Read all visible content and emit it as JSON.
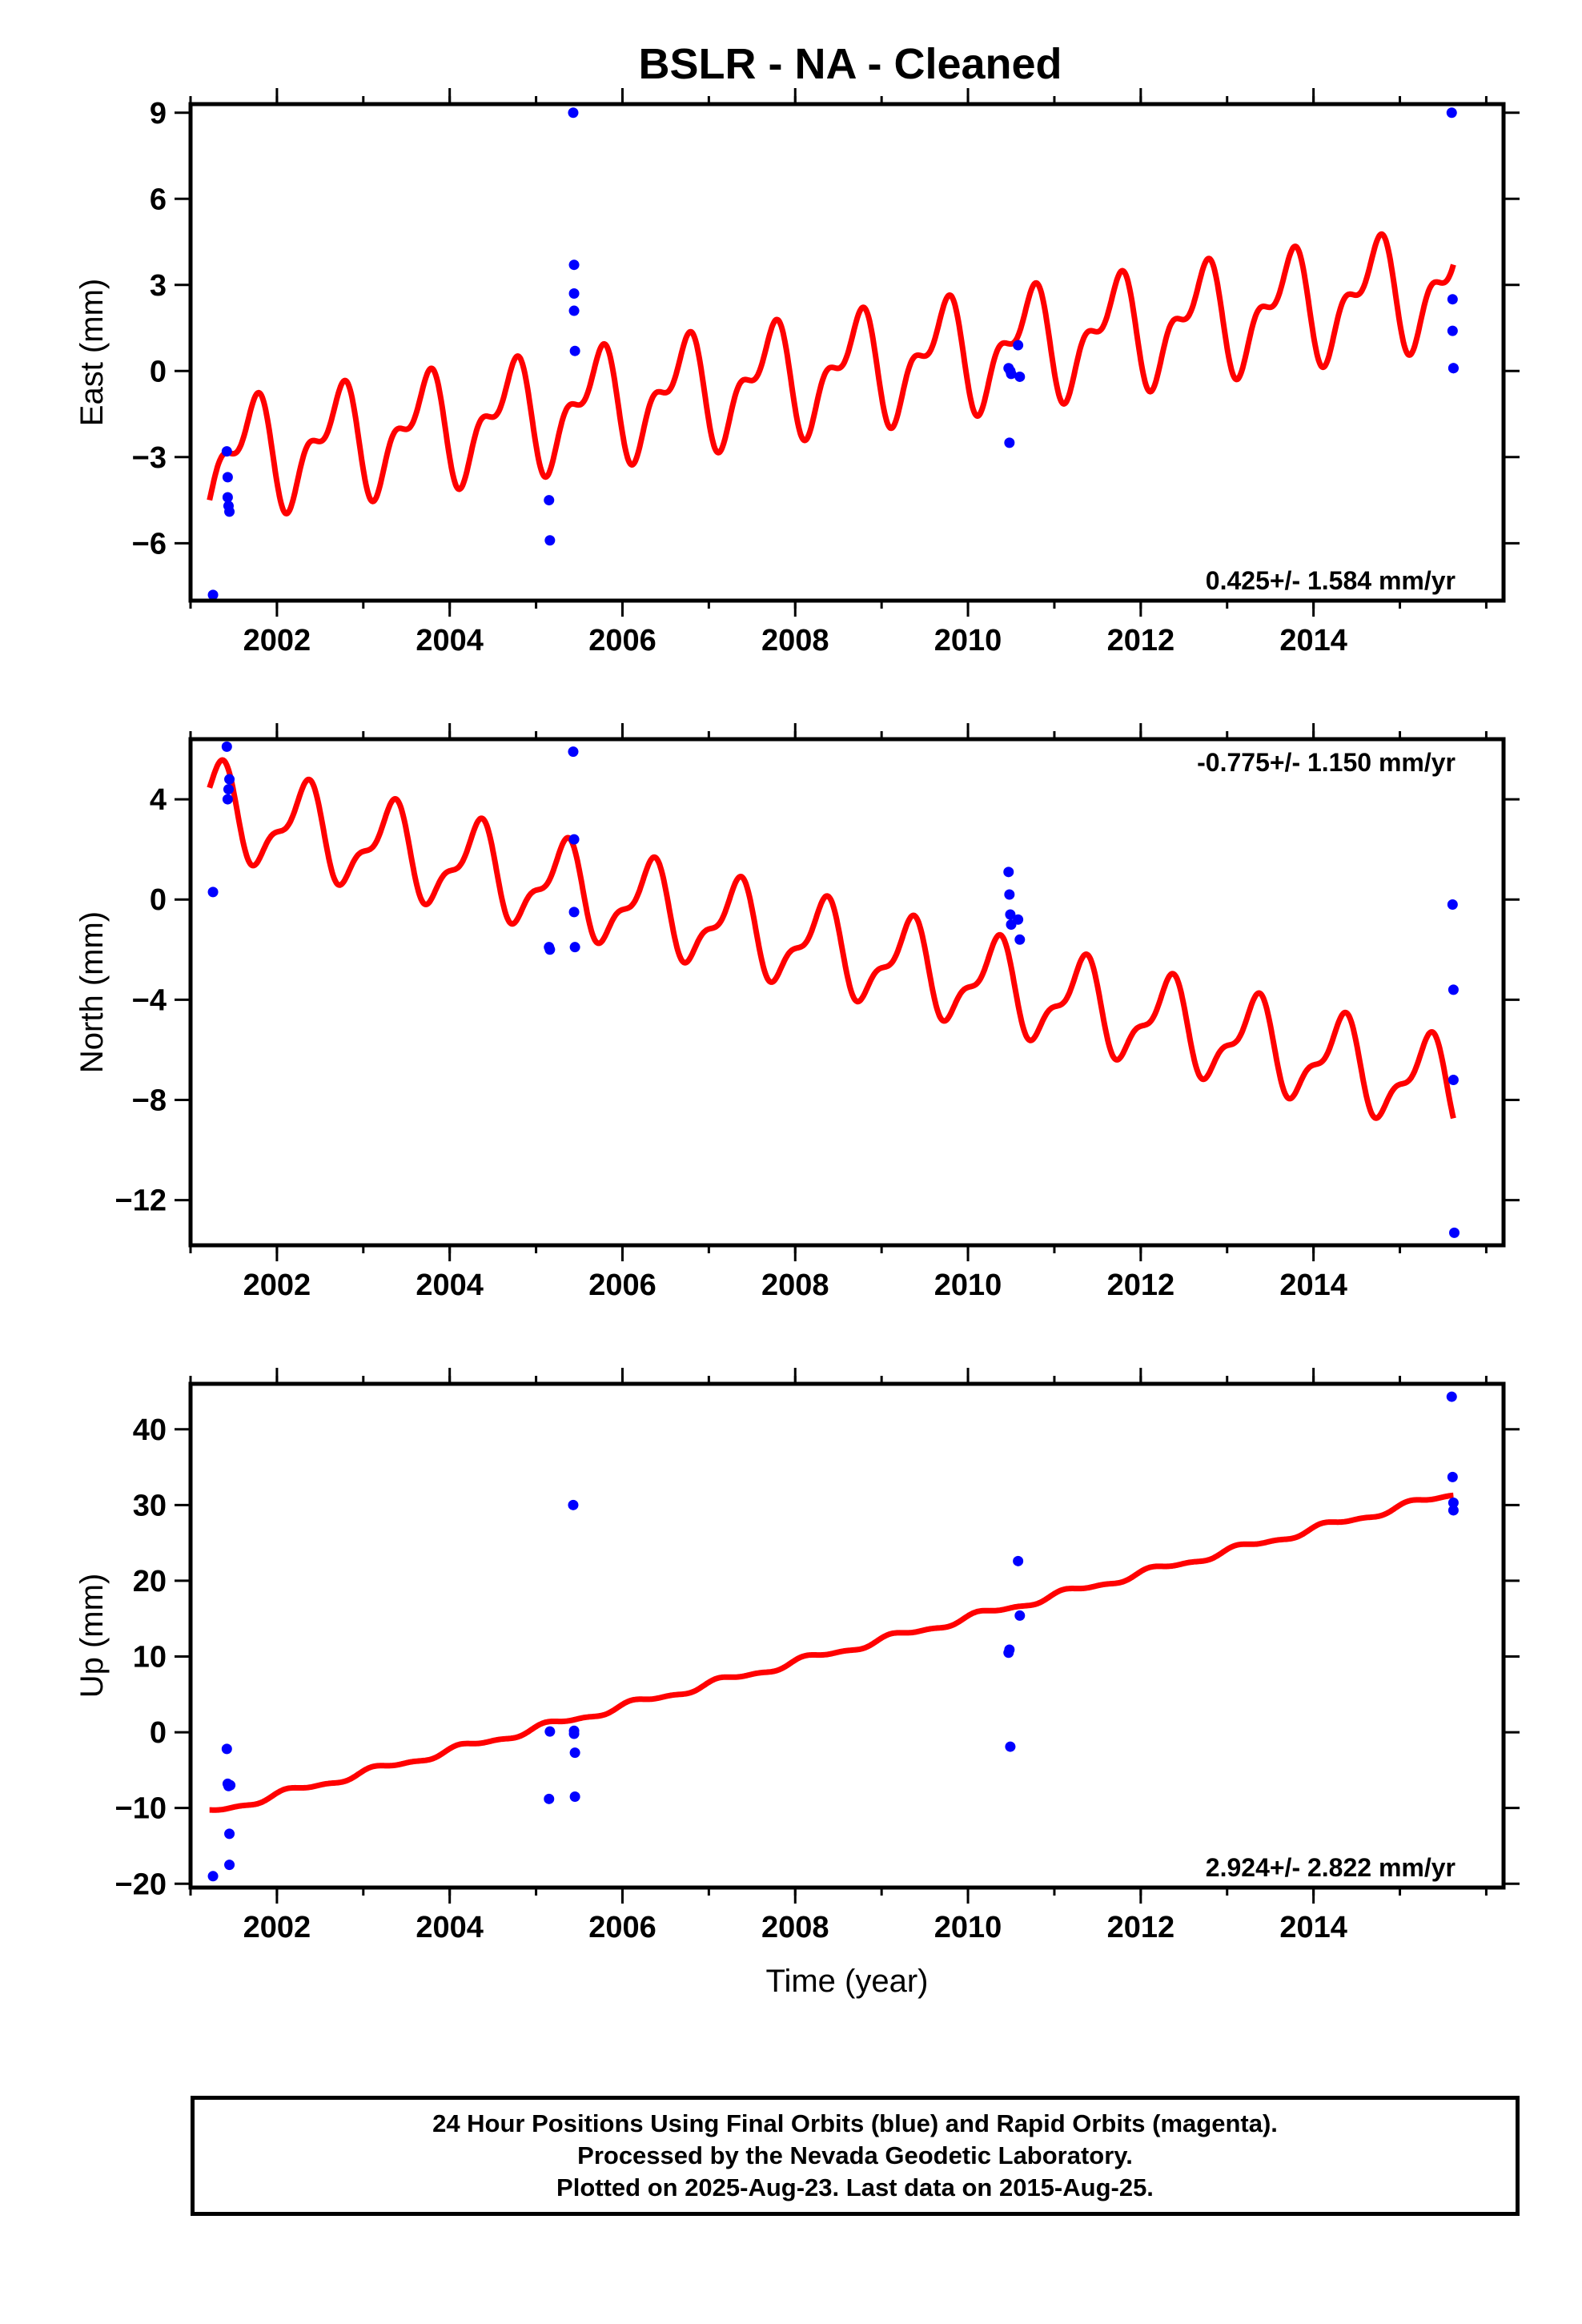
{
  "chart_data": [
    {
      "type": "scatter",
      "title": "BSLR  - NA - Cleaned",
      "ylabel": "East (mm)",
      "xlim": [
        2001.0,
        2016.2
      ],
      "ylim": [
        -8,
        9.3
      ],
      "yticks": [
        -6,
        -3,
        0,
        3,
        6,
        9
      ],
      "ytick_labels": [
        "−6",
        "−3",
        "0",
        "3",
        "6",
        "9"
      ],
      "xticks": [
        2002,
        2004,
        2006,
        2008,
        2010,
        2012,
        2014
      ],
      "xtick_labels": [
        "2002",
        "2004",
        "2006",
        "2008",
        "2010",
        "2012",
        "2014"
      ],
      "rate_label": "0.425+/- 1.584 mm/yr",
      "rate_position": "bottom-right",
      "series": [
        {
          "color": "#0000ff",
          "x": [
            2001.26,
            2001.42,
            2001.43,
            2001.43,
            2001.44,
            2001.45,
            2005.15,
            2005.16,
            2005.43,
            2005.44,
            2005.44,
            2005.44,
            2005.45,
            2010.47,
            2010.48,
            2010.49,
            2010.5,
            2010.58,
            2010.6,
            2015.6,
            2015.61,
            2015.61,
            2015.62,
            2015.62
          ],
          "y": [
            -7.8,
            -2.8,
            -3.7,
            -4.4,
            -4.7,
            -4.9,
            -4.5,
            -5.9,
            9.0,
            3.7,
            2.7,
            2.1,
            0.7,
            0.1,
            -2.5,
            0.0,
            -0.1,
            0.9,
            -0.2,
            9.0,
            2.5,
            1.4,
            0.1,
            0.1
          ]
        }
      ],
      "model": {
        "color": "#ff0000",
        "x_start": 2001.22,
        "x_end": 2015.62,
        "offset": -3.1,
        "rate": 0.425,
        "ref_year": 2001.22,
        "annual_sin": -1.5,
        "annual_cos": -0.6,
        "semiannual_sin": -0.75,
        "semiannual_cos": -0.5
      }
    },
    {
      "type": "scatter",
      "ylabel": "North (mm)",
      "xlim": [
        2001.0,
        2016.2
      ],
      "ylim": [
        -13.8,
        6.4
      ],
      "yticks": [
        -12,
        -8,
        -4,
        0,
        4
      ],
      "ytick_labels": [
        "−12",
        "−8",
        "−4",
        "0",
        "4"
      ],
      "xticks": [
        2002,
        2004,
        2006,
        2008,
        2010,
        2012,
        2014
      ],
      "xtick_labels": [
        "2002",
        "2004",
        "2006",
        "2008",
        "2010",
        "2012",
        "2014"
      ],
      "rate_label": "-0.775+/- 1.150 mm/yr",
      "rate_position": "top-right",
      "series": [
        {
          "color": "#0000ff",
          "x": [
            2001.26,
            2001.42,
            2001.43,
            2001.44,
            2001.45,
            2005.15,
            2005.16,
            2005.43,
            2005.44,
            2005.44,
            2005.45,
            2010.47,
            2010.48,
            2010.49,
            2010.5,
            2010.58,
            2010.6,
            2015.61,
            2015.62,
            2015.62,
            2015.63
          ],
          "y": [
            0.3,
            6.1,
            4.0,
            4.4,
            4.8,
            -1.9,
            -2.0,
            5.9,
            2.4,
            -0.5,
            -1.9,
            1.1,
            0.2,
            -0.6,
            -1.0,
            -0.8,
            -1.6,
            -0.2,
            -3.6,
            -7.2,
            -13.3
          ]
        }
      ],
      "model": {
        "color": "#ff0000",
        "x_start": 2001.22,
        "x_end": 2015.62,
        "offset": 3.6,
        "rate": -0.775,
        "ref_year": 2001.22,
        "annual_sin": 1.5,
        "annual_cos": -0.6,
        "semiannual_sin": -0.6,
        "semiannual_cos": 0.3
      }
    },
    {
      "type": "scatter",
      "ylabel": "Up (mm)",
      "xlabel": "Time (year)",
      "xlim": [
        2001.0,
        2016.2
      ],
      "ylim": [
        -20.5,
        46
      ],
      "yticks": [
        -20,
        -10,
        0,
        10,
        20,
        30,
        40
      ],
      "ytick_labels": [
        "−20",
        "−10",
        "0",
        "10",
        "20",
        "30",
        "40"
      ],
      "xticks": [
        2002,
        2004,
        2006,
        2008,
        2010,
        2012,
        2014
      ],
      "xtick_labels": [
        "2002",
        "2004",
        "2006",
        "2008",
        "2010",
        "2012",
        "2014"
      ],
      "rate_label": "2.924+/- 2.822 mm/yr",
      "rate_position": "bottom-right",
      "series": [
        {
          "color": "#0000ff",
          "x": [
            2001.26,
            2001.42,
            2001.43,
            2001.44,
            2001.45,
            2001.45,
            2001.46,
            2005.15,
            2005.16,
            2005.43,
            2005.44,
            2005.44,
            2005.45,
            2005.45,
            2010.47,
            2010.48,
            2010.49,
            2010.58,
            2010.6,
            2015.6,
            2015.61,
            2015.62,
            2015.62
          ],
          "y": [
            -19.0,
            -2.2,
            -6.8,
            -7.1,
            -13.4,
            -17.5,
            -7.0,
            -8.8,
            0.1,
            30.0,
            0.2,
            -0.2,
            -2.7,
            -8.5,
            10.5,
            10.9,
            -1.9,
            22.6,
            15.4,
            44.3,
            33.7,
            30.3,
            29.3
          ]
        }
      ],
      "model": {
        "color": "#ff0000",
        "x_start": 2001.22,
        "x_end": 2015.62,
        "offset": -10.6,
        "rate": 2.924,
        "ref_year": 2001.22,
        "annual_sin": 0.35,
        "annual_cos": 0.2,
        "semiannual_sin": 0.15,
        "semiannual_cos": 0.1
      }
    }
  ],
  "footer": {
    "line1": "24 Hour Positions Using Final Orbits (blue) and Rapid Orbits (magenta).",
    "line2": "Processed by the Nevada Geodetic Laboratory.",
    "line3": "Plotted on 2025-Aug-23. Last data on 2015-Aug-25."
  }
}
